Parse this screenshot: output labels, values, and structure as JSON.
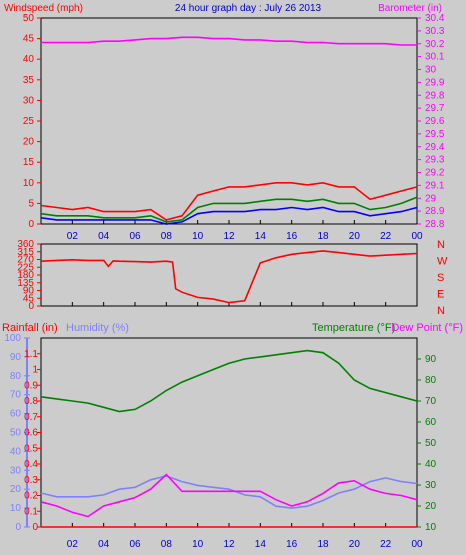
{
  "title": "24 hour graph day : July 26 2013",
  "colors": {
    "bg": "#cccccc",
    "frame": "#000000",
    "wind": "#ff0000",
    "gust_green": "#008000",
    "baro": "#ff00ff",
    "blue_line": "#0000ff",
    "direction": "#ff0000",
    "rain": "#ff0000",
    "humidity": "#8080ff",
    "temperature": "#008000",
    "dewpoint": "#ff00ff",
    "title_color": "#0000cc",
    "yellow": "#ffff00"
  },
  "x_ticks": [
    "02",
    "04",
    "06",
    "08",
    "10",
    "12",
    "14",
    "16",
    "18",
    "20",
    "22",
    "00"
  ],
  "chart_data": [
    {
      "type": "line",
      "title": "24 hour graph day : July 26 2013",
      "ylabel": "Windspeed (mph)",
      "y2label": "Barometer (in)",
      "ylim": [
        0,
        50
      ],
      "y_ticks": [
        "0",
        "5",
        "10",
        "15",
        "20",
        "25",
        "30",
        "35",
        "40",
        "45",
        "50"
      ],
      "y2lim": [
        28.8,
        30.4
      ],
      "y2_ticks": [
        "28.8",
        "28.9",
        "29",
        "29.1",
        "29.2",
        "29.3",
        "29.4",
        "29.5",
        "29.6",
        "29.7",
        "29.8",
        "29.9",
        "30",
        "30.1",
        "30.2",
        "30.3",
        "30.4"
      ],
      "hours": [
        0,
        1,
        2,
        3,
        4,
        5,
        6,
        7,
        8,
        9,
        10,
        11,
        12,
        13,
        14,
        15,
        16,
        17,
        18,
        19,
        20,
        21,
        22,
        23,
        24
      ],
      "series": [
        {
          "key": "wind_gust",
          "values": [
            4.5,
            4,
            3.5,
            4,
            3,
            3,
            3,
            3.5,
            1,
            2,
            7,
            8,
            9,
            9,
            9.5,
            10,
            10,
            9.5,
            10,
            9,
            9,
            6,
            7,
            8,
            9
          ]
        },
        {
          "key": "wind_avg",
          "values": [
            2.5,
            2,
            2,
            2,
            1.5,
            1.5,
            1.5,
            2,
            0.5,
            1,
            4,
            5,
            5,
            5,
            5.5,
            6,
            6,
            5.5,
            6,
            5,
            5,
            3.5,
            4,
            5,
            6.5
          ]
        },
        {
          "key": "wind_speed",
          "values": [
            1.5,
            1,
            1,
            1,
            1,
            1,
            1,
            1,
            0,
            0.5,
            2.5,
            3,
            3,
            3,
            3.5,
            3.5,
            4,
            3.5,
            4,
            3,
            3,
            2,
            2.5,
            3,
            4
          ]
        },
        {
          "key": "barometer",
          "values": [
            30.21,
            30.21,
            30.21,
            30.21,
            30.22,
            30.22,
            30.23,
            30.24,
            30.24,
            30.25,
            30.25,
            30.24,
            30.24,
            30.23,
            30.23,
            30.22,
            30.22,
            30.21,
            30.21,
            30.2,
            30.2,
            30.2,
            30.2,
            30.19,
            30.19
          ]
        }
      ]
    },
    {
      "type": "line",
      "ylim": [
        0,
        360
      ],
      "y_ticks": [
        "0",
        "45",
        "90",
        "135",
        "180",
        "225",
        "270",
        "315",
        "360"
      ],
      "compass": [
        "N",
        "W",
        "S",
        "E",
        "N"
      ],
      "hours": [
        0,
        1,
        2,
        3,
        4,
        4.3,
        4.6,
        5,
        6,
        7,
        8,
        8.4,
        8.6,
        9,
        10,
        11,
        12,
        13,
        14,
        15,
        16,
        17,
        18,
        19,
        20,
        21,
        22,
        23,
        24
      ],
      "series": [
        {
          "key": "wind_direction",
          "values": [
            260,
            265,
            268,
            265,
            265,
            230,
            262,
            260,
            258,
            255,
            260,
            255,
            100,
            80,
            50,
            40,
            20,
            30,
            250,
            280,
            300,
            310,
            320,
            310,
            300,
            290,
            295,
            300,
            305
          ]
        }
      ]
    },
    {
      "type": "line",
      "ylabel": "Rainfall (in)",
      "ylabel2": "Humidity (%)",
      "y2label": "Temperature (°F)",
      "y2label2": "Dew Point (°F)",
      "rain_lim": [
        0,
        1.2
      ],
      "rain_ticks": [
        "0",
        "0.1",
        "0.2",
        "0.3",
        "0.4",
        "0.5",
        "0.6",
        "0.7",
        "0.8",
        "0.9",
        "1",
        "1.1"
      ],
      "hum_lim": [
        0,
        100
      ],
      "hum_ticks": [
        "0",
        "10",
        "20",
        "30",
        "40",
        "50",
        "60",
        "70",
        "80",
        "90",
        "100"
      ],
      "temp_lim": [
        10,
        100
      ],
      "temp_ticks": [
        "10",
        "20",
        "30",
        "40",
        "50",
        "60",
        "70",
        "80",
        "90"
      ],
      "hours": [
        0,
        1,
        2,
        3,
        4,
        5,
        6,
        7,
        8,
        9,
        10,
        11,
        12,
        13,
        14,
        15,
        16,
        17,
        18,
        19,
        20,
        21,
        22,
        23,
        24
      ],
      "series": [
        {
          "key": "temperature",
          "values": [
            72,
            71,
            70,
            69,
            67,
            65,
            66,
            70,
            75,
            79,
            82,
            85,
            88,
            90,
            91,
            92,
            93,
            94,
            93,
            88,
            80,
            76,
            74,
            72,
            70
          ]
        },
        {
          "key": "dewpoint",
          "values": [
            22,
            20,
            17,
            15,
            20,
            22,
            24,
            28,
            35,
            27,
            27,
            27,
            27,
            27,
            27,
            23,
            20,
            22,
            26,
            31,
            32,
            28,
            26,
            25,
            23
          ]
        },
        {
          "key": "humidity",
          "values": [
            18,
            16,
            16,
            16,
            17,
            20,
            21,
            25,
            27,
            24,
            22,
            21,
            20,
            17,
            16,
            11,
            10,
            11,
            14,
            18,
            20,
            24,
            26,
            24,
            23
          ]
        },
        {
          "key": "rainfall",
          "values": [
            0,
            0,
            0,
            0,
            0,
            0,
            0,
            0,
            0,
            0,
            0,
            0,
            0,
            0,
            0,
            0,
            0,
            0,
            0,
            0,
            0,
            0,
            0,
            0,
            0
          ]
        }
      ]
    }
  ]
}
